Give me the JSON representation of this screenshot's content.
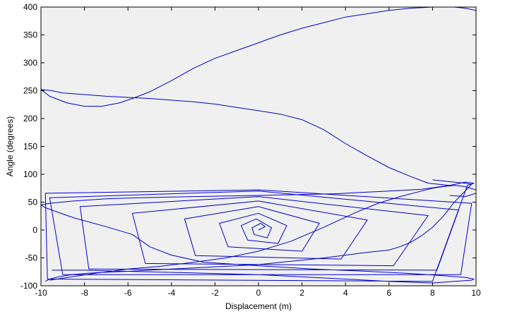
{
  "chart_data": {
    "type": "line",
    "title": "",
    "xlabel": "Displacement (m)",
    "ylabel": "Angle (degrees)",
    "xlim": [
      -10,
      10
    ],
    "ylim": [
      -100,
      400
    ],
    "xticks": [
      -10,
      -8,
      -6,
      -4,
      -2,
      0,
      2,
      4,
      6,
      8,
      10
    ],
    "yticks": [
      -100,
      -50,
      0,
      50,
      100,
      150,
      200,
      250,
      300,
      350,
      400
    ],
    "grid": false,
    "legend": "none",
    "colors": {
      "line": "#0000cc",
      "axes_bg": "#f0f0f0",
      "figure_bg": "#ffffff"
    },
    "series": [
      {
        "x": [
          0.0,
          0.3,
          0.1,
          -0.3,
          -0.2,
          0.4,
          0.6,
          -0.1,
          -0.8,
          -0.5,
          0.9,
          1.3,
          0.0,
          -1.8,
          -1.4,
          2.0,
          2.8,
          0.0,
          -3.4,
          -2.9,
          3.8,
          5.0,
          0.0,
          -5.8,
          -5.2,
          6.2,
          7.8,
          0.0,
          -8.2,
          -7.8,
          8.2,
          9.2,
          0.0,
          -9.6,
          -9.0,
          9.3,
          9.8,
          0.0,
          -9.8,
          -9.7,
          8.0,
          9.6,
          9.9,
          9.5,
          8.8,
          7.5,
          6.0,
          3.5,
          0.0,
          -3.0,
          -5.5,
          -7.0,
          -8.5,
          -9.6,
          -10.0,
          -9.8,
          -8.5,
          -7.0,
          -5.8,
          -5.0,
          -4.0,
          -2.5,
          0.0,
          2.5,
          5.0,
          7.0,
          8.5,
          9.5,
          9.9,
          9.8,
          9.0,
          8.0,
          6.0,
          4.0,
          2.0,
          0.0,
          -2.0,
          -4.0,
          -6.0,
          -8.0,
          -9.5
        ],
        "y": [
          0,
          6,
          12,
          4,
          -8,
          -14,
          4,
          20,
          8,
          -18,
          -24,
          8,
          30,
          12,
          -30,
          -38,
          12,
          42,
          20,
          -46,
          -52,
          18,
          52,
          30,
          -60,
          -64,
          26,
          60,
          42,
          -70,
          -72,
          36,
          70,
          58,
          -80,
          -80,
          48,
          72,
          66,
          -88,
          -92,
          80,
          84,
          86,
          80,
          73,
          70,
          65,
          62,
          60,
          58,
          56,
          52,
          48,
          45,
          40,
          22,
          6,
          -8,
          -30,
          -45,
          -58,
          -64,
          -70,
          -74,
          -78,
          -82,
          -85,
          -88,
          -90,
          -92,
          -95,
          -92,
          -88,
          -84,
          -80,
          -78,
          -76,
          -74,
          -72,
          -72
        ]
      },
      {
        "x": [
          -9.8,
          -9.6,
          -9.2,
          -8.6,
          -8.0,
          -7.2,
          -6.0,
          -5.0,
          -4.0,
          -3.0,
          -2.0,
          -1.0,
          0.0,
          1.0,
          2.0,
          3.0,
          4.0,
          5.0,
          6.0,
          6.5,
          7.0,
          7.5,
          8.0,
          8.5,
          9.0,
          9.5,
          9.8,
          9.5,
          9.0,
          8.5,
          8.0
        ],
        "y": [
          -92,
          -88,
          -84,
          -80,
          -78,
          -76,
          -74,
          -72,
          -70,
          -68,
          -66,
          -64,
          -62,
          -58,
          -54,
          -50,
          -45,
          -40,
          -36,
          -30,
          -22,
          -10,
          5,
          25,
          50,
          70,
          82,
          84,
          86,
          88,
          90
        ]
      },
      {
        "x": [
          -9.6,
          -8.6,
          -7.2,
          -6.0,
          -4.5,
          -3.0,
          -1.5,
          0.0,
          1.5,
          3.0,
          4.5,
          5.5,
          6.5,
          7.5,
          8.0,
          8.5,
          9.0,
          9.5,
          10.0,
          10.0,
          9.5,
          8.8
        ],
        "y": [
          -90,
          -84,
          -76,
          -70,
          -65,
          -58,
          -50,
          -38,
          -20,
          5,
          32,
          48,
          60,
          70,
          75,
          78,
          80,
          78,
          72,
          66,
          60,
          62
        ]
      },
      {
        "x": [
          8.8,
          7.8,
          7.0,
          6.0,
          5.0,
          4.0,
          3.0,
          2.0,
          1.0,
          0.0,
          -1.0,
          -2.0,
          -3.0,
          -4.0,
          -5.0,
          -6.0,
          -7.0,
          -8.0,
          -9.0,
          -9.5,
          -10.0,
          -9.6,
          -8.8,
          -8.0,
          -7.2,
          -6.4,
          -5.8,
          -5.0,
          -4.0,
          -3.0,
          -2.0,
          -1.0,
          0.0,
          1.0,
          2.0,
          3.0,
          4.0,
          5.0,
          6.0,
          7.0,
          8.0,
          8.6,
          9.0,
          9.5,
          10.0
        ],
        "y": [
          80,
          84,
          96,
          112,
          133,
          155,
          180,
          198,
          208,
          214,
          220,
          226,
          230,
          233,
          236,
          238,
          240,
          243,
          246,
          250,
          252,
          240,
          228,
          222,
          222,
          228,
          236,
          248,
          268,
          290,
          308,
          322,
          336,
          350,
          362,
          372,
          382,
          388,
          394,
          398,
          400,
          400,
          400,
          398,
          394
        ]
      }
    ]
  }
}
